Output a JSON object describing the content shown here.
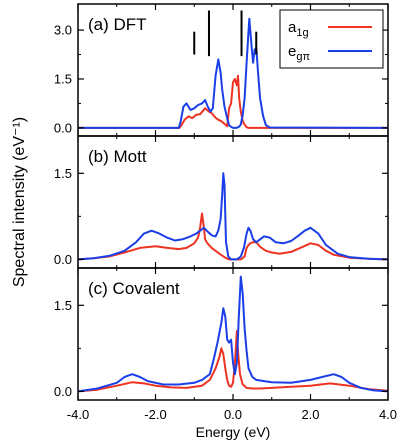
{
  "chart_data": {
    "type": "line",
    "ylabel": "Spectral intensity (eV⁻¹)",
    "xlabel": "Energy (eV)",
    "xlim": [
      -4.0,
      4.0
    ],
    "xticks": [
      "-4.0",
      "-2.0",
      "0.0",
      "2.0",
      "4.0"
    ],
    "legend": {
      "placement": "top-right of panel (a)",
      "entries": [
        {
          "label": "a",
          "subscript": "1g",
          "color": "#ee3322"
        },
        {
          "label": "e",
          "subscript": "gπ",
          "color": "#1a3fe8"
        }
      ]
    },
    "colors": {
      "a1g": "#ee3322",
      "egpi": "#1a3fe8"
    },
    "panels": [
      {
        "label": "(a) DFT",
        "ylim": [
          -0.25,
          3.8
        ],
        "yticks": [
          0.0,
          1.5,
          3.0
        ],
        "ytick_labels": [
          "0.0",
          "1.5",
          "3.0"
        ],
        "markers": [
          {
            "x": -1.0,
            "y_bottom": 2.25,
            "y_top": 2.95
          },
          {
            "x": -0.62,
            "y_bottom": 2.2,
            "y_top": 3.6
          },
          {
            "x": 0.22,
            "y_bottom": 2.2,
            "y_top": 3.6
          },
          {
            "x": 0.6,
            "y_bottom": 2.25,
            "y_top": 2.95
          }
        ],
        "series": [
          {
            "key": "a1g",
            "color": "#ee3322",
            "x": [
              -4.0,
              -1.38,
              -1.32,
              -1.25,
              -1.15,
              -1.05,
              -0.95,
              -0.85,
              -0.72,
              -0.62,
              -0.55,
              -0.5,
              -0.44,
              -0.38,
              -0.3,
              -0.22,
              -0.15,
              -0.1,
              -0.05,
              0.0,
              0.05,
              0.1,
              0.13,
              0.16,
              0.2,
              0.25,
              0.3,
              0.35,
              0.4,
              4.0
            ],
            "y": [
              0.0,
              0.0,
              0.1,
              0.25,
              0.35,
              0.3,
              0.4,
              0.42,
              0.6,
              0.5,
              0.45,
              0.38,
              0.3,
              0.25,
              0.2,
              0.12,
              0.05,
              0.6,
              0.75,
              1.4,
              1.5,
              1.3,
              1.6,
              0.9,
              0.5,
              0.2,
              0.1,
              0.02,
              0.0,
              0.0
            ]
          },
          {
            "key": "egpi",
            "color": "#1a3fe8",
            "x": [
              -4.0,
              -1.4,
              -1.35,
              -1.28,
              -1.2,
              -1.1,
              -1.0,
              -0.9,
              -0.8,
              -0.72,
              -0.65,
              -0.58,
              -0.52,
              -0.45,
              -0.38,
              -0.32,
              -0.28,
              -0.22,
              -0.15,
              -0.1,
              -0.05,
              0.0,
              0.08,
              0.15,
              0.2,
              0.25,
              0.3,
              0.35,
              0.42,
              0.48,
              0.52,
              0.56,
              0.6,
              0.64,
              0.7,
              0.78,
              0.85,
              0.95,
              4.0
            ],
            "y": [
              0.0,
              0.0,
              0.2,
              0.65,
              0.75,
              0.55,
              0.6,
              0.7,
              0.75,
              0.85,
              0.65,
              0.5,
              0.6,
              1.6,
              2.1,
              1.7,
              1.2,
              0.65,
              0.3,
              0.08,
              0.03,
              0.0,
              0.0,
              0.03,
              0.1,
              0.4,
              0.9,
              2.0,
              3.35,
              2.5,
              2.0,
              2.4,
              2.45,
              1.8,
              0.9,
              0.35,
              0.08,
              0.01,
              0.0
            ]
          }
        ]
      },
      {
        "label": "(b) Mott",
        "ylim": [
          -0.15,
          2.15
        ],
        "yticks": [
          0.0,
          1.5
        ],
        "ytick_labels": [
          "0.0",
          "1.5"
        ],
        "series": [
          {
            "key": "a1g",
            "color": "#ee3322",
            "x": [
              -4.0,
              -3.6,
              -3.2,
              -2.8,
              -2.4,
              -2.0,
              -1.7,
              -1.4,
              -1.2,
              -1.0,
              -0.9,
              -0.85,
              -0.8,
              -0.75,
              -0.72,
              -0.68,
              -0.62,
              -0.55,
              -0.45,
              -0.35,
              -0.2,
              -0.1,
              0.0,
              0.1,
              0.2,
              0.3,
              0.35,
              0.4,
              0.45,
              0.5,
              0.6,
              0.7,
              0.85,
              1.0,
              1.2,
              1.5,
              1.8,
              2.0,
              2.2,
              2.4,
              2.6,
              3.0,
              3.5,
              4.0
            ],
            "y": [
              0.0,
              0.02,
              0.05,
              0.12,
              0.2,
              0.23,
              0.2,
              0.18,
              0.2,
              0.28,
              0.38,
              0.55,
              0.8,
              0.55,
              0.35,
              0.3,
              0.25,
              0.2,
              0.15,
              0.1,
              0.03,
              0.0,
              0.0,
              0.0,
              0.0,
              0.05,
              0.2,
              0.25,
              0.28,
              0.3,
              0.3,
              0.22,
              0.15,
              0.12,
              0.1,
              0.13,
              0.22,
              0.28,
              0.25,
              0.15,
              0.08,
              0.03,
              0.01,
              0.0
            ]
          },
          {
            "key": "egpi",
            "color": "#1a3fe8",
            "x": [
              -4.0,
              -3.6,
              -3.2,
              -2.8,
              -2.5,
              -2.3,
              -2.1,
              -1.9,
              -1.7,
              -1.5,
              -1.3,
              -1.1,
              -0.95,
              -0.85,
              -0.75,
              -0.65,
              -0.55,
              -0.45,
              -0.38,
              -0.32,
              -0.28,
              -0.25,
              -0.22,
              -0.18,
              -0.12,
              -0.05,
              0.0,
              0.1,
              0.2,
              0.28,
              0.35,
              0.4,
              0.45,
              0.52,
              0.6,
              0.7,
              0.8,
              0.95,
              1.1,
              1.3,
              1.5,
              1.7,
              1.85,
              2.0,
              2.2,
              2.4,
              2.7,
              3.0,
              3.5,
              4.0
            ],
            "y": [
              0.0,
              0.02,
              0.06,
              0.15,
              0.3,
              0.45,
              0.5,
              0.45,
              0.38,
              0.33,
              0.35,
              0.4,
              0.45,
              0.5,
              0.55,
              0.48,
              0.42,
              0.4,
              0.5,
              0.7,
              1.1,
              1.5,
              1.3,
              0.3,
              0.05,
              0.0,
              0.0,
              0.0,
              0.05,
              0.2,
              0.45,
              0.55,
              0.5,
              0.35,
              0.3,
              0.35,
              0.4,
              0.38,
              0.3,
              0.28,
              0.32,
              0.42,
              0.5,
              0.55,
              0.45,
              0.25,
              0.1,
              0.04,
              0.01,
              0.0
            ]
          }
        ]
      },
      {
        "label": "(c) Covalent",
        "ylim": [
          -0.15,
          2.15
        ],
        "yticks": [
          0.0,
          1.5
        ],
        "ytick_labels": [
          "0.0",
          "1.5"
        ],
        "series": [
          {
            "key": "a1g",
            "color": "#ee3322",
            "x": [
              -4.0,
              -3.5,
              -3.0,
              -2.6,
              -2.3,
              -2.0,
              -1.6,
              -1.2,
              -0.8,
              -0.6,
              -0.45,
              -0.35,
              -0.3,
              -0.25,
              -0.2,
              -0.15,
              -0.1,
              -0.05,
              0.0,
              0.05,
              0.1,
              0.13,
              0.18,
              0.25,
              0.35,
              0.5,
              0.7,
              1.0,
              1.5,
              2.0,
              2.5,
              3.0,
              3.5,
              4.0
            ],
            "y": [
              0.0,
              0.03,
              0.1,
              0.16,
              0.14,
              0.1,
              0.07,
              0.06,
              0.1,
              0.2,
              0.4,
              0.6,
              0.75,
              0.65,
              0.4,
              0.2,
              0.1,
              0.08,
              0.15,
              0.5,
              1.05,
              0.7,
              0.3,
              0.12,
              0.06,
              0.05,
              0.05,
              0.06,
              0.08,
              0.1,
              0.14,
              0.1,
              0.04,
              0.01
            ]
          },
          {
            "key": "egpi",
            "color": "#1a3fe8",
            "x": [
              -4.0,
              -3.5,
              -3.0,
              -2.8,
              -2.6,
              -2.4,
              -2.2,
              -1.8,
              -1.4,
              -1.0,
              -0.8,
              -0.6,
              -0.5,
              -0.4,
              -0.3,
              -0.25,
              -0.2,
              -0.15,
              -0.1,
              -0.05,
              0.0,
              0.05,
              0.1,
              0.15,
              0.2,
              0.25,
              0.3,
              0.35,
              0.4,
              0.5,
              0.6,
              0.8,
              1.0,
              1.5,
              2.0,
              2.3,
              2.6,
              2.8,
              3.0,
              3.3,
              3.6,
              4.0
            ],
            "y": [
              0.0,
              0.05,
              0.15,
              0.25,
              0.3,
              0.25,
              0.18,
              0.12,
              0.12,
              0.15,
              0.2,
              0.3,
              0.55,
              0.85,
              1.2,
              1.45,
              1.3,
              0.9,
              0.85,
              0.9,
              0.5,
              0.3,
              0.5,
              1.3,
              2.0,
              1.7,
              1.1,
              0.7,
              0.4,
              0.25,
              0.2,
              0.18,
              0.16,
              0.15,
              0.2,
              0.25,
              0.3,
              0.25,
              0.15,
              0.06,
              0.02,
              0.0
            ]
          }
        ]
      }
    ]
  }
}
